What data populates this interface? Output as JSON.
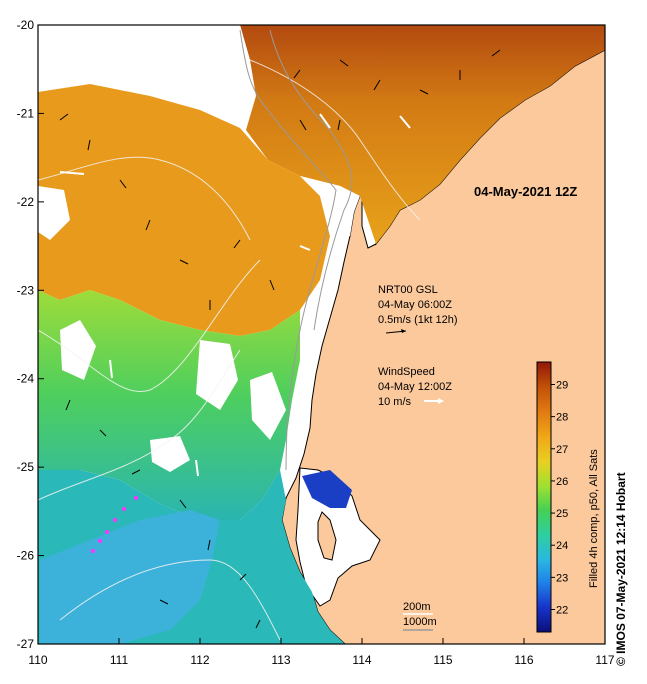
{
  "map": {
    "date_label": "04-May-2021 12Z",
    "lon_ticks": [
      "110",
      "111",
      "112",
      "113",
      "114",
      "115",
      "116",
      "117"
    ],
    "lat_ticks": [
      "-20",
      "-21",
      "-22",
      "-23",
      "-24",
      "-25",
      "-26",
      "-27"
    ],
    "lon_range": [
      110,
      117
    ],
    "lat_range": [
      -27,
      -20
    ],
    "current_legend": {
      "title": "NRT00 GSL",
      "time": "04-May 06:00Z",
      "scale": "0.5m/s (1kt 12h)"
    },
    "wind_legend": {
      "title": "WindSpeed",
      "time": "04-May 12:00Z",
      "scale": "10 m/s"
    },
    "depth_legend": [
      "200m",
      "1000m"
    ],
    "colorbar": {
      "label": "Filled 4h comp, p50, All Sats",
      "ticks": [
        "29",
        "28",
        "27",
        "26",
        "25",
        "24",
        "23",
        "22"
      ],
      "range": [
        21.3,
        29.7
      ],
      "colors": [
        "#0b0f7a",
        "#1733c8",
        "#1f7fe8",
        "#29b8e0",
        "#2ecfa0",
        "#45d055",
        "#a0e030",
        "#e8d020",
        "#f0a818",
        "#e07810",
        "#c05008",
        "#901808"
      ]
    },
    "credit": "IMOS 07-May-2021 12:14 Hobart",
    "credit_symbol": "©",
    "colors": {
      "land": "#fbc99c",
      "coast": "#000000",
      "no_data": "#ffffff"
    }
  }
}
